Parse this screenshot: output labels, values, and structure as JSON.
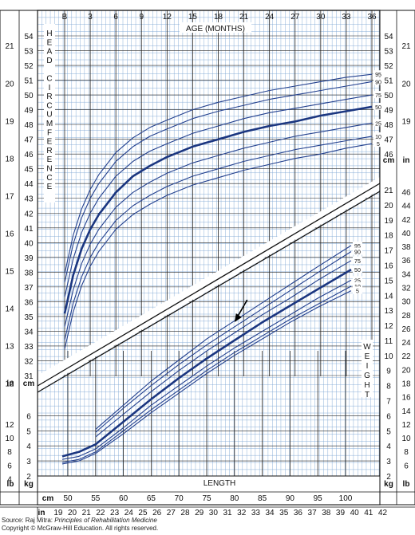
{
  "chart_data": {
    "type": "line",
    "title": "",
    "colors": {
      "grid_fine": "#7fa7d4",
      "grid_major": "#222222",
      "curve": "#23408e",
      "curve_median": "#1b3680",
      "frame": "#111111"
    },
    "top_axis": {
      "label": "AGE (MONTHS)",
      "ticks": [
        "B",
        "3",
        "6",
        "9",
        "12",
        "15",
        "18",
        "21",
        "24",
        "27",
        "30",
        "33",
        "36"
      ]
    },
    "head_circumference": {
      "label_letters": [
        "H",
        "E",
        "A",
        "D",
        "",
        "C",
        "I",
        "R",
        "C",
        "U",
        "M",
        "F",
        "E",
        "R",
        "E",
        "N",
        "C",
        "E"
      ],
      "cm_left_ticks": [
        "31",
        "32",
        "33",
        "34",
        "35",
        "36",
        "37",
        "38",
        "39",
        "40",
        "41",
        "42",
        "43",
        "44",
        "45",
        "46",
        "47",
        "48",
        "49",
        "50",
        "51",
        "52",
        "53",
        "54"
      ],
      "in_left_ticks": [
        "12",
        "13",
        "14",
        "15",
        "16",
        "17",
        "18",
        "19",
        "20",
        "21"
      ],
      "cm_right_ticks": [
        "46",
        "47",
        "48",
        "49",
        "50",
        "51",
        "52",
        "53",
        "54"
      ],
      "in_right_ticks": [
        "19",
        "20",
        "21"
      ],
      "unit_left_in": "in",
      "unit_left_cm": "cm",
      "unit_right_cm": "cm",
      "unit_right_in": "in",
      "x_unit": "months",
      "y_unit": "cm",
      "series": [
        {
          "name": "95",
          "x": [
            0,
            1,
            2,
            3,
            4,
            6,
            8,
            10,
            12,
            15,
            18,
            21,
            24,
            27,
            30,
            33,
            36
          ],
          "y": [
            37.9,
            40.5,
            42.3,
            43.6,
            44.6,
            46.1,
            47.1,
            47.8,
            48.3,
            49.0,
            49.5,
            49.9,
            50.3,
            50.6,
            50.9,
            51.2,
            51.4
          ]
        },
        {
          "name": "90",
          "x": [
            0,
            1,
            2,
            3,
            4,
            6,
            8,
            10,
            12,
            15,
            18,
            21,
            24,
            27,
            30,
            33,
            36
          ],
          "y": [
            37.3,
            39.9,
            41.7,
            43.0,
            44.0,
            45.5,
            46.5,
            47.2,
            47.7,
            48.4,
            48.9,
            49.3,
            49.7,
            50.0,
            50.3,
            50.6,
            50.9
          ]
        },
        {
          "name": "75",
          "x": [
            0,
            1,
            2,
            3,
            4,
            6,
            8,
            10,
            12,
            15,
            18,
            21,
            24,
            27,
            30,
            33,
            36
          ],
          "y": [
            36.3,
            38.9,
            40.7,
            42.0,
            43.0,
            44.5,
            45.5,
            46.2,
            46.7,
            47.4,
            47.9,
            48.4,
            48.8,
            49.1,
            49.4,
            49.7,
            50.0
          ]
        },
        {
          "name": "50",
          "x": [
            0,
            1,
            2,
            3,
            4,
            6,
            8,
            10,
            12,
            15,
            18,
            21,
            24,
            27,
            30,
            33,
            36
          ],
          "y": [
            35.2,
            37.8,
            39.6,
            40.9,
            41.9,
            43.4,
            44.5,
            45.2,
            45.8,
            46.5,
            47.0,
            47.5,
            47.9,
            48.2,
            48.6,
            48.9,
            49.2
          ]
        },
        {
          "name": "25",
          "x": [
            0,
            1,
            2,
            3,
            4,
            6,
            8,
            10,
            12,
            15,
            18,
            21,
            24,
            27,
            30,
            33,
            36
          ],
          "y": [
            34.3,
            36.8,
            38.6,
            39.9,
            40.9,
            42.4,
            43.4,
            44.1,
            44.7,
            45.4,
            45.9,
            46.4,
            46.8,
            47.2,
            47.5,
            47.8,
            48.1
          ]
        },
        {
          "name": "10",
          "x": [
            0,
            1,
            2,
            3,
            4,
            6,
            8,
            10,
            12,
            15,
            18,
            21,
            24,
            27,
            30,
            33,
            36
          ],
          "y": [
            33.4,
            35.9,
            37.7,
            39.0,
            40.0,
            41.5,
            42.5,
            43.2,
            43.8,
            44.5,
            45.0,
            45.5,
            45.9,
            46.3,
            46.6,
            46.9,
            47.2
          ]
        },
        {
          "name": "5",
          "x": [
            0,
            1,
            2,
            3,
            4,
            6,
            8,
            10,
            12,
            15,
            18,
            21,
            24,
            27,
            30,
            33,
            36
          ],
          "y": [
            32.8,
            35.3,
            37.1,
            38.4,
            39.4,
            40.9,
            41.9,
            42.6,
            43.2,
            43.9,
            44.4,
            44.9,
            45.3,
            45.7,
            46.0,
            46.4,
            46.7
          ]
        }
      ]
    },
    "weight_for_length": {
      "label_letters": [
        "W",
        "E",
        "I",
        "G",
        "H",
        "T"
      ],
      "kg_right_ticks": [
        "2",
        "3",
        "4",
        "5",
        "6",
        "7",
        "8",
        "9",
        "10",
        "11",
        "12",
        "13",
        "14",
        "15",
        "16",
        "17",
        "18",
        "19",
        "20",
        "21"
      ],
      "lb_right_ticks": [
        "6",
        "8",
        "10",
        "12",
        "14",
        "16",
        "18",
        "20",
        "22",
        "24",
        "26",
        "28",
        "30",
        "32",
        "34",
        "36",
        "38",
        "40",
        "42",
        "44",
        "46"
      ],
      "kg_left_ticks": [
        "2",
        "3",
        "4",
        "5",
        "6"
      ],
      "lb_left_ticks": [
        "4",
        "6",
        "8",
        "10",
        "12"
      ],
      "unit_left_lb": "lb",
      "unit_left_kg": "kg",
      "unit_right_kg": "kg",
      "unit_right_lb": "lb",
      "x_label": "LENGTH",
      "x_cm_unit": "cm",
      "x_in_unit": "in",
      "x_cm_ticks": [
        "50",
        "55",
        "60",
        "65",
        "70",
        "75",
        "80",
        "85",
        "90",
        "95",
        "100"
      ],
      "x_in_ticks": [
        "19",
        "20",
        "21",
        "22",
        "23",
        "24",
        "25",
        "26",
        "27",
        "28",
        "29",
        "30",
        "31",
        "32",
        "33",
        "34",
        "35",
        "36",
        "37",
        "38",
        "39",
        "40",
        "41",
        "42"
      ],
      "x_unit": "cm",
      "y_unit": "kg",
      "series": [
        {
          "name": "95",
          "x": [
            55,
            60,
            65,
            70,
            75,
            80,
            85,
            90,
            95,
            101
          ],
          "y": [
            5.1,
            6.7,
            8.3,
            9.7,
            11.1,
            12.3,
            13.5,
            14.7,
            15.9,
            17.3
          ]
        },
        {
          "name": "90",
          "x": [
            55,
            60,
            65,
            70,
            75,
            80,
            85,
            90,
            95,
            101
          ],
          "y": [
            4.9,
            6.5,
            8.0,
            9.4,
            10.7,
            11.9,
            13.1,
            14.3,
            15.5,
            16.9
          ]
        },
        {
          "name": "75",
          "x": [
            55,
            60,
            65,
            70,
            75,
            80,
            85,
            90,
            95,
            101
          ],
          "y": [
            4.6,
            6.1,
            7.6,
            9.0,
            10.3,
            11.5,
            12.7,
            13.8,
            15.0,
            16.3
          ]
        },
        {
          "name": "50",
          "x": [
            49,
            52,
            55,
            60,
            65,
            70,
            75,
            80,
            85,
            90,
            95,
            101
          ],
          "y": [
            3.3,
            3.6,
            4.1,
            5.6,
            7.1,
            8.5,
            9.8,
            11.0,
            12.2,
            13.3,
            14.4,
            15.7
          ]
        },
        {
          "name": "25",
          "x": [
            49,
            52,
            55,
            60,
            65,
            70,
            75,
            80,
            85,
            90,
            95,
            101
          ],
          "y": [
            3.1,
            3.3,
            3.8,
            5.2,
            6.7,
            8.0,
            9.3,
            10.5,
            11.6,
            12.7,
            13.8,
            15.0
          ]
        },
        {
          "name": "10",
          "x": [
            49,
            52,
            55,
            60,
            65,
            70,
            75,
            80,
            85,
            90,
            95,
            101
          ],
          "y": [
            2.9,
            3.1,
            3.6,
            5.0,
            6.4,
            7.7,
            9.0,
            10.2,
            11.3,
            12.4,
            13.4,
            14.6
          ]
        },
        {
          "name": "5",
          "x": [
            49,
            52,
            55,
            60,
            65,
            70,
            75,
            80,
            85,
            90,
            95,
            101
          ],
          "y": [
            2.8,
            3.0,
            3.5,
            4.8,
            6.2,
            7.5,
            8.8,
            10.0,
            11.1,
            12.2,
            13.2,
            14.3
          ]
        }
      ],
      "annotation": {
        "type": "arrow",
        "points_to": {
          "x": 80,
          "y": 12.0
        }
      }
    },
    "grid": true,
    "legend": "percentile labels at right end of each curve"
  },
  "source": {
    "prefix": "Source: Raj Mitra: ",
    "book": "Principles of Rehabilitation Medicine",
    "copyright": "Copyright © McGraw-Hill Education. All rights reserved."
  }
}
